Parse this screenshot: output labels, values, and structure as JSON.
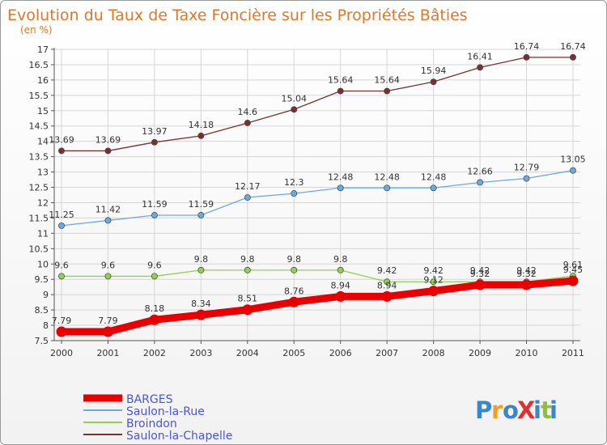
{
  "chart_data": {
    "type": "line",
    "title": "Evolution du Taux de Taxe Foncière sur les Propriétés Bâties",
    "subtitle": "(en %)",
    "xlabel": "",
    "ylabel": "",
    "categories": [
      "2000",
      "2001",
      "2002",
      "2003",
      "2004",
      "2005",
      "2006",
      "2007",
      "2008",
      "2009",
      "2010",
      "2011"
    ],
    "ylim": [
      7.5,
      17
    ],
    "yticks": [
      "7.5",
      "8",
      "8.5",
      "9",
      "9.5",
      "10",
      "10.5",
      "11",
      "11.5",
      "12",
      "12.5",
      "13",
      "13.5",
      "14",
      "14.5",
      "15",
      "15.5",
      "16",
      "16.5",
      "17"
    ],
    "grid": true,
    "legend_position": "bottom-left",
    "series": [
      {
        "name": "BARGES",
        "color": "#e80000",
        "values": [
          7.79,
          7.79,
          8.18,
          8.34,
          8.51,
          8.76,
          8.94,
          8.94,
          9.12,
          9.32,
          9.32,
          9.45
        ],
        "labels": [
          "7.79",
          "7.79",
          "8.18",
          "8.34",
          "8.51",
          "8.76",
          "8.94",
          "8.94",
          "9.12",
          "9.32",
          "9.32",
          "9.45"
        ]
      },
      {
        "name": "Saulon-la-Rue",
        "color": "#6aaae0",
        "values": [
          11.25,
          11.42,
          11.59,
          11.59,
          12.17,
          12.3,
          12.48,
          12.48,
          12.48,
          12.66,
          12.79,
          13.05
        ],
        "labels": [
          "11.25",
          "11.42",
          "11.59",
          "11.59",
          "12.17",
          "12.3",
          "12.48",
          "12.48",
          "12.48",
          "12.66",
          "12.79",
          "13.05"
        ]
      },
      {
        "name": "Broindon",
        "color": "#92d050",
        "values": [
          9.6,
          9.6,
          9.6,
          9.8,
          9.8,
          9.8,
          9.8,
          9.42,
          9.42,
          9.42,
          9.42,
          9.61
        ],
        "labels": [
          "9.6",
          "9.6",
          "9.6",
          "9.8",
          "9.8",
          "9.8",
          "9.8",
          "9.42",
          "9.42",
          "9.42",
          "9.42",
          "9.61"
        ]
      },
      {
        "name": "Saulon-la-Chapelle",
        "color": "#7a3030",
        "values": [
          13.69,
          13.69,
          13.97,
          14.18,
          14.6,
          15.04,
          15.64,
          15.64,
          15.94,
          16.41,
          16.74,
          16.74
        ],
        "labels": [
          "13.69",
          "13.69",
          "13.97",
          "14.18",
          "14.6",
          "15.04",
          "15.64",
          "15.64",
          "15.94",
          "16.41",
          "16.74",
          "16.74"
        ]
      }
    ]
  },
  "logo": {
    "text": "ProXiti"
  }
}
